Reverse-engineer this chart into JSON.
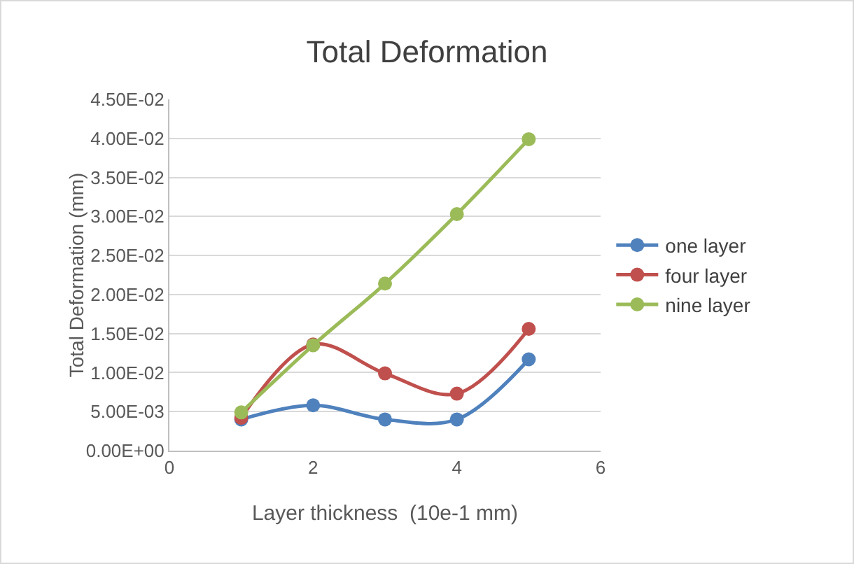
{
  "chart_data": {
    "type": "line",
    "title": "Total Deformation",
    "xlabel": "Layer thickness  (10e-1 mm)",
    "ylabel": "Total Deformation (mm)",
    "x": [
      1,
      2,
      3,
      4,
      5
    ],
    "series": [
      {
        "name": "one layer",
        "color": "#4f81bd",
        "values": [
          0.004,
          0.0058,
          0.004,
          0.004,
          0.0117
        ]
      },
      {
        "name": "four layer",
        "color": "#c0504d",
        "values": [
          0.0042,
          0.0136,
          0.0099,
          0.0073,
          0.0156
        ]
      },
      {
        "name": "nine layer",
        "color": "#9bbb59",
        "values": [
          0.0049,
          0.0135,
          0.0214,
          0.0303,
          0.0399
        ]
      }
    ],
    "xlim": [
      0,
      6
    ],
    "xticks": [
      0,
      2,
      4,
      6
    ],
    "ylim": [
      0,
      0.045
    ],
    "yticks": [
      {
        "value": 0,
        "label": "0.00E+00"
      },
      {
        "value": 0.005,
        "label": "5.00E-03"
      },
      {
        "value": 0.01,
        "label": "1.00E-02"
      },
      {
        "value": 0.015,
        "label": "1.50E-02"
      },
      {
        "value": 0.02,
        "label": "2.00E-02"
      },
      {
        "value": 0.025,
        "label": "2.50E-02"
      },
      {
        "value": 0.03,
        "label": "3.00E-02"
      },
      {
        "value": 0.035,
        "label": "3.50E-02"
      },
      {
        "value": 0.04,
        "label": "4.00E-02"
      },
      {
        "value": 0.045,
        "label": "4.50E-02"
      }
    ],
    "grid": "y",
    "legend": "right",
    "marker": "circle",
    "line_style": "solid"
  }
}
